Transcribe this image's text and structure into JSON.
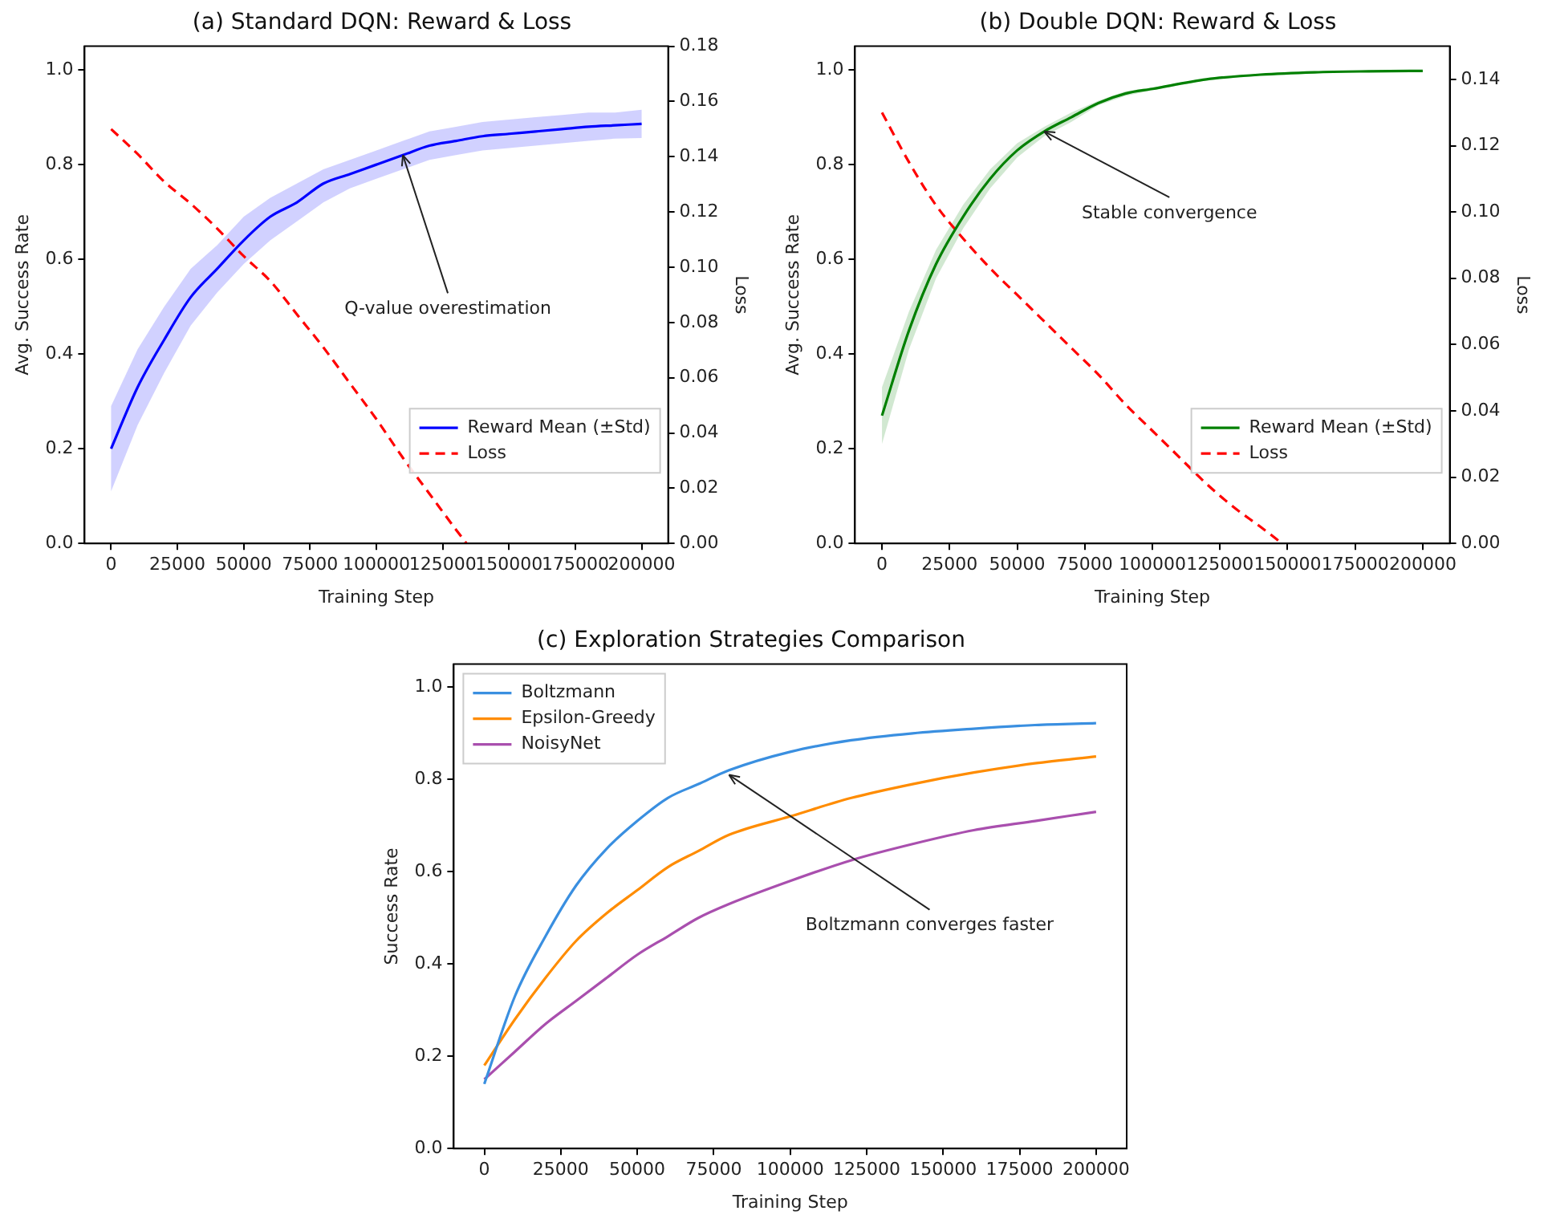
{
  "chart_data": [
    {
      "type": "line",
      "title": "(a) Standard DQN: Reward & Loss",
      "xlabel": "Training Step",
      "ylabel": "Avg. Success Rate",
      "y2label": "Loss",
      "xlim": [
        -10000,
        210000
      ],
      "xticks": [
        0,
        25000,
        50000,
        75000,
        100000,
        125000,
        150000,
        175000,
        200000
      ],
      "ylim": [
        0,
        1.05
      ],
      "yticks": [
        {
          "value": 0,
          "label": "0.0"
        },
        {
          "value": 0.2,
          "label": "0.2"
        },
        {
          "value": 0.4,
          "label": "0.4"
        },
        {
          "value": 0.6,
          "label": "0.6"
        },
        {
          "value": 0.8,
          "label": "0.8"
        },
        {
          "value": 1,
          "label": "1.0"
        }
      ],
      "y2lim": [
        0,
        0.18
      ],
      "y2ticks": [
        {
          "value": 0,
          "label": "0.00"
        },
        {
          "value": 0.02,
          "label": "0.02"
        },
        {
          "value": 0.04,
          "label": "0.04"
        },
        {
          "value": 0.06,
          "label": "0.06"
        },
        {
          "value": 0.08,
          "label": "0.08"
        },
        {
          "value": 0.1,
          "label": "0.10"
        },
        {
          "value": 0.12,
          "label": "0.12"
        },
        {
          "value": 0.14,
          "label": "0.14"
        },
        {
          "value": 0.16,
          "label": "0.16"
        },
        {
          "value": 0.18,
          "label": "0.18"
        }
      ],
      "legend": "bottom right",
      "grid": false,
      "series": [
        {
          "name": "Reward Mean (±Std)",
          "color": "#0000ff",
          "x": [
            0,
            10000,
            20000,
            30000,
            40000,
            50000,
            60000,
            70000,
            80000,
            90000,
            100000,
            110000,
            120000,
            130000,
            140000,
            150000,
            160000,
            170000,
            180000,
            190000,
            200000
          ],
          "values": [
            0.2,
            0.33,
            0.43,
            0.52,
            0.58,
            0.64,
            0.69,
            0.72,
            0.76,
            0.78,
            0.8,
            0.82,
            0.84,
            0.85,
            0.86,
            0.865,
            0.87,
            0.875,
            0.88,
            0.883,
            0.886
          ],
          "lower": [
            0.11,
            0.25,
            0.36,
            0.46,
            0.53,
            0.59,
            0.64,
            0.68,
            0.72,
            0.75,
            0.77,
            0.79,
            0.81,
            0.82,
            0.83,
            0.835,
            0.84,
            0.845,
            0.85,
            0.855,
            0.856
          ],
          "upper": [
            0.29,
            0.41,
            0.5,
            0.58,
            0.63,
            0.69,
            0.73,
            0.76,
            0.79,
            0.81,
            0.83,
            0.85,
            0.87,
            0.88,
            0.89,
            0.895,
            0.9,
            0.905,
            0.91,
            0.91,
            0.916
          ]
        },
        {
          "name": "Loss",
          "color": "#ff0000",
          "axis": "y2",
          "line_style": "dashed",
          "x": [
            0,
            10000,
            20000,
            30000,
            40000,
            50000,
            60000,
            70000,
            80000,
            90000,
            100000,
            110000,
            120000,
            130000,
            134000
          ],
          "values": [
            0.15,
            0.141,
            0.131,
            0.123,
            0.114,
            0.104,
            0.095,
            0.083,
            0.071,
            0.058,
            0.045,
            0.031,
            0.018,
            0.005,
            0
          ]
        }
      ],
      "annotations": [
        {
          "text": "Q-value overestimation",
          "x": 110000,
          "y": 0.82
        }
      ]
    },
    {
      "type": "line",
      "title": "(b) Double DQN: Reward & Loss",
      "xlabel": "Training Step",
      "ylabel": "Avg. Success Rate",
      "y2label": "Loss",
      "xlim": [
        -10000,
        210000
      ],
      "xticks": [
        0,
        25000,
        50000,
        75000,
        100000,
        125000,
        150000,
        175000,
        200000
      ],
      "ylim": [
        0,
        1.05
      ],
      "yticks": [
        {
          "value": 0,
          "label": "0.0"
        },
        {
          "value": 0.2,
          "label": "0.2"
        },
        {
          "value": 0.4,
          "label": "0.4"
        },
        {
          "value": 0.6,
          "label": "0.6"
        },
        {
          "value": 0.8,
          "label": "0.8"
        },
        {
          "value": 1,
          "label": "1.0"
        }
      ],
      "y2lim": [
        0,
        0.15
      ],
      "y2ticks": [
        {
          "value": 0,
          "label": "0.00"
        },
        {
          "value": 0.02,
          "label": "0.02"
        },
        {
          "value": 0.04,
          "label": "0.04"
        },
        {
          "value": 0.06,
          "label": "0.06"
        },
        {
          "value": 0.08,
          "label": "0.08"
        },
        {
          "value": 0.1,
          "label": "0.10"
        },
        {
          "value": 0.12,
          "label": "0.12"
        },
        {
          "value": 0.14,
          "label": "0.14"
        }
      ],
      "legend": "bottom right",
      "grid": false,
      "series": [
        {
          "name": "Reward Mean (±Std)",
          "color": "#008000",
          "x": [
            0,
            10000,
            20000,
            30000,
            40000,
            50000,
            60000,
            70000,
            80000,
            90000,
            100000,
            120000,
            140000,
            160000,
            180000,
            200000
          ],
          "values": [
            0.27,
            0.45,
            0.59,
            0.69,
            0.77,
            0.83,
            0.87,
            0.9,
            0.93,
            0.95,
            0.96,
            0.98,
            0.99,
            0.995,
            0.997,
            0.998
          ],
          "lower": [
            0.21,
            0.41,
            0.56,
            0.665,
            0.75,
            0.815,
            0.86,
            0.89,
            0.925,
            0.945,
            0.957,
            0.978,
            0.988,
            0.994,
            0.996,
            0.997
          ],
          "upper": [
            0.33,
            0.49,
            0.62,
            0.715,
            0.79,
            0.845,
            0.88,
            0.91,
            0.935,
            0.955,
            0.963,
            0.982,
            0.992,
            0.996,
            0.998,
            0.999
          ]
        },
        {
          "name": "Loss",
          "color": "#ff0000",
          "axis": "y2",
          "line_style": "dashed",
          "x": [
            0,
            10000,
            20000,
            30000,
            40000,
            50000,
            60000,
            70000,
            80000,
            90000,
            100000,
            110000,
            120000,
            130000,
            140000,
            148000
          ],
          "values": [
            0.13,
            0.115,
            0.102,
            0.092,
            0.083,
            0.075,
            0.067,
            0.059,
            0.051,
            0.042,
            0.034,
            0.026,
            0.018,
            0.011,
            0.005,
            0
          ]
        }
      ],
      "annotations": [
        {
          "text": "Stable convergence",
          "x": 60000,
          "y": 0.87
        }
      ]
    },
    {
      "type": "line",
      "title": "(c) Exploration Strategies Comparison",
      "xlabel": "Training Step",
      "ylabel": "Success Rate",
      "xlim": [
        -10000,
        210000
      ],
      "xticks": [
        0,
        25000,
        50000,
        75000,
        100000,
        125000,
        150000,
        175000,
        200000
      ],
      "ylim": [
        0,
        1.05
      ],
      "yticks": [
        {
          "value": 0,
          "label": "0.0"
        },
        {
          "value": 0.2,
          "label": "0.2"
        },
        {
          "value": 0.4,
          "label": "0.4"
        },
        {
          "value": 0.6,
          "label": "0.6"
        },
        {
          "value": 0.8,
          "label": "0.8"
        },
        {
          "value": 1,
          "label": "1.0"
        }
      ],
      "legend": "top left",
      "grid": false,
      "x": [
        0,
        10000,
        20000,
        30000,
        40000,
        50000,
        60000,
        70000,
        80000,
        100000,
        120000,
        140000,
        160000,
        180000,
        200000
      ],
      "series": [
        {
          "name": "Boltzmann",
          "color": "#3a8fe0",
          "values": [
            0.14,
            0.33,
            0.46,
            0.57,
            0.65,
            0.71,
            0.76,
            0.79,
            0.82,
            0.86,
            0.885,
            0.9,
            0.91,
            0.918,
            0.922
          ]
        },
        {
          "name": "Epsilon-Greedy",
          "color": "#ff8c00",
          "values": [
            0.18,
            0.28,
            0.37,
            0.45,
            0.51,
            0.56,
            0.61,
            0.645,
            0.68,
            0.72,
            0.76,
            0.79,
            0.815,
            0.835,
            0.85
          ]
        },
        {
          "name": "NoisyNet",
          "color": "#a94fae",
          "values": [
            0.15,
            0.21,
            0.27,
            0.32,
            0.37,
            0.42,
            0.46,
            0.5,
            0.53,
            0.58,
            0.625,
            0.66,
            0.69,
            0.71,
            0.73
          ]
        }
      ],
      "annotations": [
        {
          "text": "Boltzmann converges faster",
          "x": 80000,
          "y": 0.81
        }
      ]
    }
  ]
}
